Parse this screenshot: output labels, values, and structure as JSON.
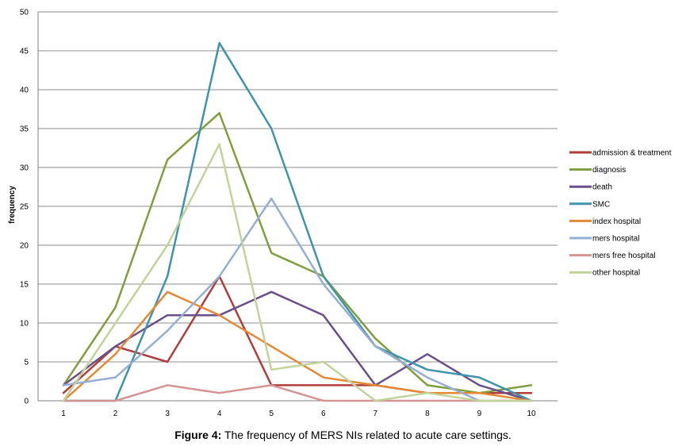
{
  "caption": {
    "label": "Figure 4:",
    "text": " The frequency of MERS NIs related to acute care settings."
  },
  "chart_data": {
    "type": "line",
    "title": "",
    "xlabel": "",
    "ylabel": "frequency",
    "x": [
      1,
      2,
      3,
      4,
      5,
      6,
      7,
      8,
      9,
      10
    ],
    "ylim": [
      0,
      50
    ],
    "yticks": [
      0,
      5,
      10,
      15,
      20,
      25,
      30,
      35,
      40,
      45,
      50
    ],
    "grid": "horizontal",
    "legend_position": "right",
    "series": [
      {
        "name": "admission & treatment",
        "color": "#b13e3b",
        "values": [
          1,
          7,
          5,
          16,
          2,
          2,
          2,
          1,
          1,
          1
        ]
      },
      {
        "name": "diagnosis",
        "color": "#7f9f3e",
        "values": [
          2,
          12,
          31,
          37,
          19,
          16,
          8,
          2,
          1,
          2
        ]
      },
      {
        "name": "death",
        "color": "#6a4f8a",
        "values": [
          2,
          7,
          11,
          11,
          14,
          11,
          2,
          6,
          2,
          0
        ]
      },
      {
        "name": "SMC",
        "color": "#3f93ad",
        "values": [
          0,
          0,
          16,
          46,
          35,
          16,
          7,
          4,
          3,
          0
        ]
      },
      {
        "name": "index hospital",
        "color": "#e48a35",
        "values": [
          0,
          6,
          14,
          11,
          7,
          3,
          2,
          1,
          1,
          0
        ]
      },
      {
        "name": "mers hospital",
        "color": "#95aed3",
        "values": [
          2,
          3,
          9,
          16,
          26,
          15,
          7,
          3,
          0,
          0
        ]
      },
      {
        "name": "mers free hospital",
        "color": "#d49592",
        "values": [
          0,
          0,
          2,
          1,
          2,
          0,
          0,
          0,
          0,
          0
        ]
      },
      {
        "name": "other hospital",
        "color": "#c0d49a",
        "values": [
          0,
          10,
          20,
          33,
          4,
          5,
          0,
          1,
          0,
          0
        ]
      }
    ]
  }
}
